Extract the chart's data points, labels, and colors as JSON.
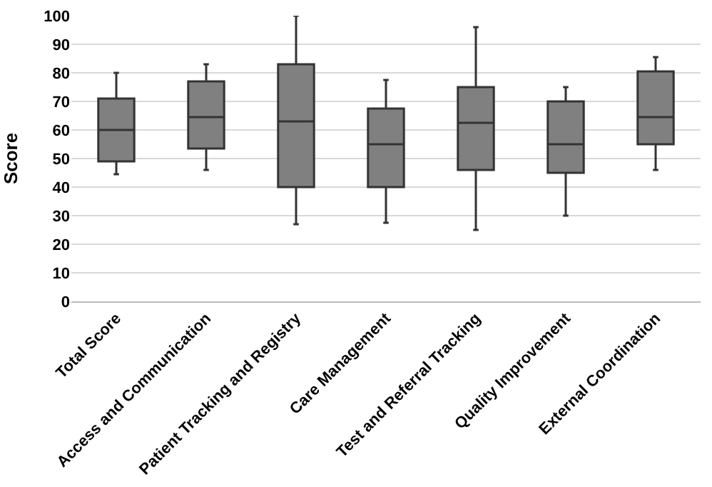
{
  "chart_data": {
    "type": "box",
    "ylabel": "Score",
    "categories": [
      "Total Score",
      "Access and Communication",
      "Patient Tracking and Registry",
      "Care Management",
      "Test and Referral Tracking",
      "Quality Improvement",
      "External Coordination"
    ],
    "boxes": [
      {
        "low": 44.5,
        "q1": 49,
        "median": 60,
        "q3": 71,
        "high": 80
      },
      {
        "low": 46,
        "q1": 53.5,
        "median": 64.5,
        "q3": 77,
        "high": 83
      },
      {
        "low": 27,
        "q1": 40,
        "median": 63,
        "q3": 83,
        "high": 100
      },
      {
        "low": 27.5,
        "q1": 40,
        "median": 55,
        "q3": 67.5,
        "high": 77.5
      },
      {
        "low": 25,
        "q1": 46,
        "median": 62.5,
        "q3": 75,
        "high": 96
      },
      {
        "low": 30,
        "q1": 45,
        "median": 55,
        "q3": 70,
        "high": 75
      },
      {
        "low": 46,
        "q1": 55,
        "median": 64.5,
        "q3": 80.5,
        "high": 85.5
      }
    ],
    "color": "#808080",
    "ylim": [
      0,
      100
    ],
    "yticks": [
      0,
      10,
      20,
      30,
      40,
      50,
      60,
      70,
      80,
      90,
      100
    ],
    "grid": "y",
    "legend": false
  }
}
